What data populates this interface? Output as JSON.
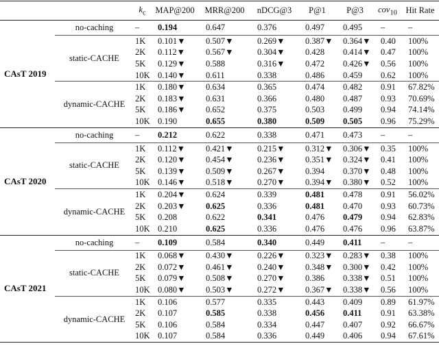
{
  "header": [
    {
      "text": "k",
      "sub": "c"
    },
    "MAP@200",
    "MRR@200",
    "nDCG@3",
    "P@1",
    "P@3",
    {
      "text": "cov",
      "sub": "10"
    },
    "Hit Rate"
  ],
  "groups": [
    {
      "name": "CAsT 2019",
      "methods": [
        {
          "name": "no-caching",
          "rows": [
            [
              "–",
              {
                "text": "0.194",
                "bold": true
              },
              "0.647",
              "0.376",
              "0.497",
              "0.495",
              "–",
              "–"
            ]
          ]
        },
        {
          "name": "static-CACHE",
          "rows": [
            [
              "1K",
              "0.101▼",
              "0.507▼",
              "0.269▼",
              "0.387▼",
              "0.364▼",
              "0.40",
              "100%"
            ],
            [
              "2K",
              "0.112▼",
              "0.567▼",
              "0.304▼",
              "0.428",
              "0.414▼",
              "0.47",
              "100%"
            ],
            [
              "5K",
              "0.129▼",
              "0.588",
              "0.316▼",
              "0.472",
              "0.426▼",
              "0.56",
              "100%"
            ],
            [
              "10K",
              "0.140▼",
              "0.611",
              "0.338",
              "0.486",
              "0.459",
              "0.62",
              "100%"
            ]
          ]
        },
        {
          "name": "dynamic-CACHE",
          "rows": [
            [
              "1K",
              "0.180▼",
              "0.634",
              "0.365",
              "0.474",
              "0.482",
              "0.91",
              "67.82%"
            ],
            [
              "2K",
              "0.183▼",
              "0.631",
              "0.366",
              "0.480",
              "0.487",
              "0.93",
              "70.69%"
            ],
            [
              "5K",
              "0.186▼",
              "0.652",
              "0.375",
              "0.503",
              "0.499",
              "0.94",
              "74.14%"
            ],
            [
              "10K",
              "0.190",
              {
                "text": "0.655",
                "bold": true
              },
              {
                "text": "0.380",
                "bold": true
              },
              {
                "text": "0.509",
                "bold": true
              },
              {
                "text": "0.505",
                "bold": true
              },
              "0.96",
              "75.29%"
            ]
          ]
        }
      ]
    },
    {
      "name": "CAsT 2020",
      "methods": [
        {
          "name": "no-caching",
          "rows": [
            [
              "–",
              {
                "text": "0.212",
                "bold": true
              },
              "0.622",
              "0.338",
              "0.471",
              "0.473",
              "–",
              "–"
            ]
          ]
        },
        {
          "name": "static-CACHE",
          "rows": [
            [
              "1K",
              "0.112▼",
              "0.421▼",
              "0.215▼",
              "0.312▼",
              "0.306▼",
              "0.35",
              "100%"
            ],
            [
              "2K",
              "0.120▼",
              "0.454▼",
              "0.236▼",
              "0.351▼",
              "0.324▼",
              "0.41",
              "100%"
            ],
            [
              "5K",
              "0.139▼",
              "0.509▼",
              "0.267▼",
              "0.394",
              "0.370▼",
              "0.48",
              "100%"
            ],
            [
              "10K",
              "0.146▼",
              "0.518▼",
              "0.270▼",
              "0.394▼",
              "0.380▼",
              "0.52",
              "100%"
            ]
          ]
        },
        {
          "name": "dynamic-CACHE",
          "rows": [
            [
              "1K",
              "0.204▼",
              "0.624",
              "0.339",
              {
                "text": "0.481",
                "bold": true
              },
              "0.478",
              "0.91",
              "56.02%"
            ],
            [
              "2K",
              "0.203▼",
              {
                "text": "0.625",
                "bold": true
              },
              "0.336",
              {
                "text": "0.481",
                "bold": true
              },
              "0.470",
              "0.93",
              "60.73%"
            ],
            [
              "5K",
              "0.208",
              "0.622",
              {
                "text": "0.341",
                "bold": true
              },
              "0.476",
              {
                "text": "0.479",
                "bold": true
              },
              "0.94",
              "62.83%"
            ],
            [
              "10K",
              "0.210",
              {
                "text": "0.625",
                "bold": true
              },
              "0.336",
              "0.476",
              "0.476",
              "0.96",
              "63.87%"
            ]
          ]
        }
      ]
    },
    {
      "name": "CAsT 2021",
      "methods": [
        {
          "name": "no-caching",
          "rows": [
            [
              "–",
              {
                "text": "0.109",
                "bold": true
              },
              "0.584",
              {
                "text": "0.340",
                "bold": true
              },
              "0.449",
              {
                "text": "0.411",
                "bold": true
              },
              "–",
              "–"
            ]
          ]
        },
        {
          "name": "static-CACHE",
          "rows": [
            [
              "1K",
              "0.068▼",
              "0.430▼",
              "0.226▼",
              "0.323▼",
              "0.283▼",
              "0.38",
              "100%"
            ],
            [
              "2K",
              "0.072▼",
              "0.461▼",
              "0.240▼",
              "0.348▼",
              "0.300▼",
              "0.42",
              "100%"
            ],
            [
              "5K",
              "0.079▼",
              "0.508▼",
              "0.270▼",
              "0.386",
              "0.338▼",
              "0.51",
              "100%"
            ],
            [
              "10K",
              "0.080▼",
              "0.503▼",
              "0.272▼",
              "0.367▼",
              "0.338▼",
              "0.56",
              "100%"
            ]
          ]
        },
        {
          "name": "dynamic-CACHE",
          "rows": [
            [
              "1K",
              "0.106",
              "0.577",
              "0.335",
              "0.443",
              "0.409",
              "0.89",
              "61.97%"
            ],
            [
              "2K",
              "0.107",
              {
                "text": "0.585",
                "bold": true
              },
              "0.338",
              {
                "text": "0.456",
                "bold": true
              },
              {
                "text": "0.411",
                "bold": true
              },
              "0.91",
              "63.38%"
            ],
            [
              "5K",
              "0.106",
              "0.584",
              "0.334",
              "0.447",
              "0.407",
              "0.92",
              "66.67%"
            ],
            [
              "10K",
              "0.107",
              "0.584",
              "0.336",
              "0.449",
              "0.406",
              "0.94",
              "67.61%"
            ]
          ]
        }
      ]
    }
  ]
}
